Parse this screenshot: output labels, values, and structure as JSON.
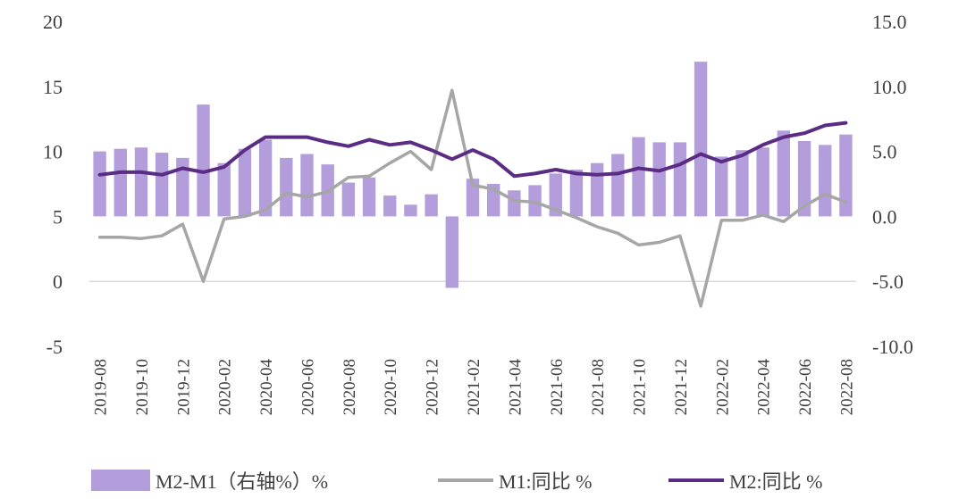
{
  "chart_data": {
    "type": "bar+line",
    "categories": [
      "2019-08",
      "2019-09",
      "2019-10",
      "2019-11",
      "2019-12",
      "2020-01",
      "2020-02",
      "2020-03",
      "2020-04",
      "2020-05",
      "2020-06",
      "2020-07",
      "2020-08",
      "2020-09",
      "2020-10",
      "2020-11",
      "2020-12",
      "2021-01",
      "2021-02",
      "2021-03",
      "2021-04",
      "2021-05",
      "2021-06",
      "2021-07",
      "2021-08",
      "2021-09",
      "2021-10",
      "2021-11",
      "2021-12",
      "2022-01",
      "2022-02",
      "2022-03",
      "2022-04",
      "2022-05",
      "2022-06",
      "2022-07",
      "2022-08"
    ],
    "x_tick_labels": [
      "2019-08",
      "2019-10",
      "2019-12",
      "2020-02",
      "2020-04",
      "2020-06",
      "2020-08",
      "2020-10",
      "2020-12",
      "2021-02",
      "2021-04",
      "2021-06",
      "2021-08",
      "2021-10",
      "2021-12",
      "2022-02",
      "2022-04",
      "2022-06",
      "2022-08"
    ],
    "left_axis": {
      "ylim": [
        -5,
        20
      ],
      "ticks": [
        "20",
        "15",
        "10",
        "5",
        "0",
        "-5"
      ],
      "tick_values": [
        20,
        15,
        10,
        5,
        0,
        -5
      ]
    },
    "right_axis": {
      "ylim": [
        -10,
        15
      ],
      "ticks": [
        "15.0",
        "10.0",
        "5.0",
        "0.0",
        "-5.0",
        "-10.0"
      ],
      "tick_values": [
        15,
        10,
        5,
        0,
        -5,
        -10
      ]
    },
    "series": [
      {
        "name": "M2-M1（右轴%）%",
        "type": "bar",
        "axis": "right",
        "color": "#b39ddb",
        "values": [
          5.0,
          5.2,
          5.3,
          4.9,
          4.5,
          8.6,
          4.1,
          5.2,
          5.9,
          4.5,
          4.8,
          4.0,
          2.6,
          3.0,
          1.6,
          0.9,
          1.7,
          -5.5,
          2.9,
          2.5,
          2.0,
          2.4,
          3.3,
          3.6,
          4.1,
          4.8,
          6.1,
          5.7,
          5.7,
          11.9,
          4.6,
          5.1,
          5.3,
          6.6,
          5.8,
          5.5,
          6.3
        ]
      },
      {
        "name": "M1:同比 %",
        "type": "line",
        "axis": "left",
        "color": "#a6a6a6",
        "values": [
          3.4,
          3.4,
          3.3,
          3.5,
          4.4,
          0.0,
          4.8,
          5.0,
          5.5,
          6.8,
          6.5,
          6.9,
          8.0,
          8.1,
          9.1,
          10.0,
          8.6,
          14.7,
          7.4,
          7.1,
          6.2,
          6.1,
          5.5,
          4.9,
          4.2,
          3.7,
          2.8,
          3.0,
          3.5,
          -1.9,
          4.7,
          4.7,
          5.1,
          4.6,
          5.8,
          6.7,
          6.1
        ]
      },
      {
        "name": "M2:同比 %",
        "type": "line",
        "axis": "left",
        "color": "#5b2c83",
        "values": [
          8.2,
          8.4,
          8.4,
          8.2,
          8.7,
          8.4,
          8.8,
          10.1,
          11.1,
          11.1,
          11.1,
          10.7,
          10.4,
          10.9,
          10.5,
          10.7,
          10.1,
          9.4,
          10.1,
          9.4,
          8.1,
          8.3,
          8.6,
          8.3,
          8.2,
          8.3,
          8.7,
          8.5,
          9.0,
          9.8,
          9.2,
          9.7,
          10.5,
          11.1,
          11.4,
          12.0,
          12.2
        ]
      }
    ],
    "legend_position": "bottom",
    "grid": false
  },
  "legend": [
    {
      "label": "M2-M1（右轴%）%",
      "color": "#b39ddb",
      "kind": "bar"
    },
    {
      "label": "M1:同比 %",
      "color": "#a6a6a6",
      "kind": "line"
    },
    {
      "label": "M2:同比 %",
      "color": "#5b2c83",
      "kind": "line"
    }
  ]
}
